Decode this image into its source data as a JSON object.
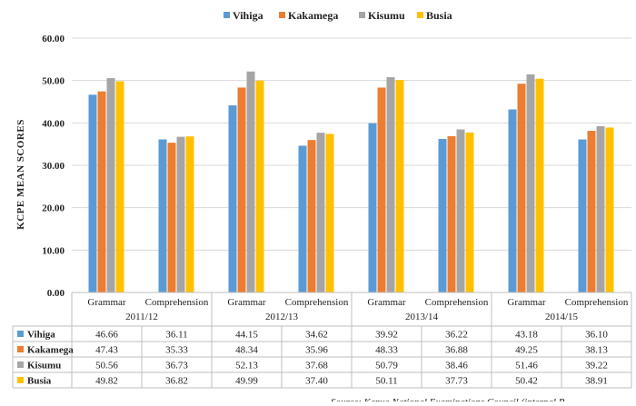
{
  "chart_data": {
    "type": "bar",
    "ylabel": "KCPE MEAN SCORES",
    "ylim": [
      0,
      60
    ],
    "yticks": [
      "0.00",
      "10.00",
      "20.00",
      "30.00",
      "40.00",
      "50.00",
      "60.00"
    ],
    "grid": true,
    "legend_position": "top",
    "groups": [
      "2011/12",
      "2012/13",
      "2013/14",
      "2014/15"
    ],
    "subcategories": [
      "Grammar",
      "Comprehension"
    ],
    "categories": [
      "Grammar",
      "Comprehension",
      "Grammar",
      "Comprehension",
      "Grammar",
      "Comprehension",
      "Grammar",
      "Comprehension"
    ],
    "series": [
      {
        "name": "Vihiga",
        "color": "#5b9bd5",
        "values": [
          46.66,
          36.11,
          44.15,
          34.62,
          39.92,
          36.22,
          43.18,
          36.1
        ],
        "labels": [
          "46.66",
          "36.11",
          "44.15",
          "34.62",
          "39.92",
          "36.22",
          "43.18",
          "36.10"
        ]
      },
      {
        "name": "Kakamega",
        "color": "#ed7d31",
        "values": [
          47.43,
          35.33,
          48.34,
          35.96,
          48.33,
          36.88,
          49.25,
          38.13
        ],
        "labels": [
          "47.43",
          "35.33",
          "48.34",
          "35.96",
          "48.33",
          "36.88",
          "49.25",
          "38.13"
        ]
      },
      {
        "name": "Kisumu",
        "color": "#a5a5a5",
        "values": [
          50.56,
          36.73,
          52.13,
          37.68,
          50.79,
          38.46,
          51.46,
          39.22
        ],
        "labels": [
          "50.56",
          "36.73",
          "52.13",
          "37.68",
          "50.79",
          "38.46",
          "51.46",
          "39.22"
        ]
      },
      {
        "name": "Busia",
        "color": "#ffc000",
        "values": [
          49.82,
          36.82,
          49.99,
          37.4,
          50.11,
          37.73,
          50.42,
          38.91
        ],
        "labels": [
          "49.82",
          "36.82",
          "49.99",
          "37.40",
          "50.11",
          "37.73",
          "50.42",
          "38.91"
        ]
      }
    ],
    "source_note": "Source: Kenya National Examinations Council (internal R"
  }
}
